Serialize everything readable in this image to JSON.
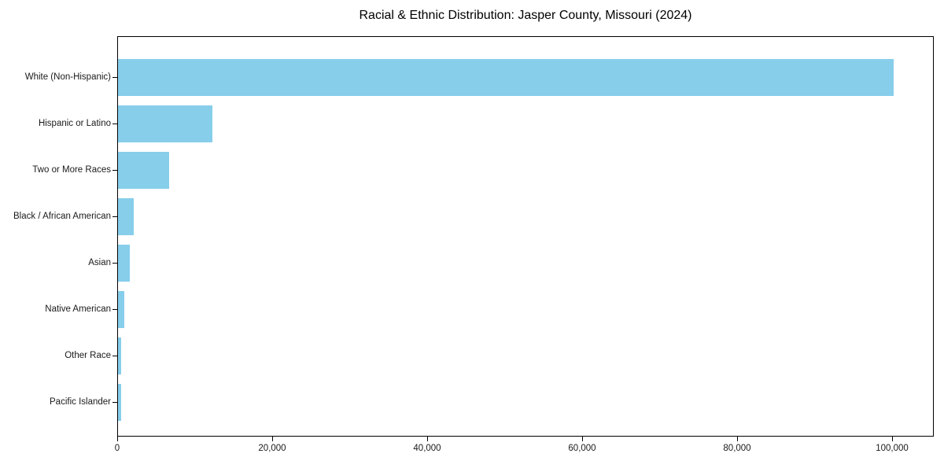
{
  "chart_data": {
    "type": "bar",
    "orientation": "horizontal",
    "title": "Racial & Ethnic Distribution: Jasper County, Missouri (2024)",
    "categories": [
      "White (Non-Hispanic)",
      "Hispanic or Latino",
      "Two or More Races",
      "Black / African American",
      "Asian",
      "Native American",
      "Other Race",
      "Pacific Islander"
    ],
    "values": [
      100300,
      12200,
      6600,
      2000,
      1500,
      800,
      450,
      400
    ],
    "xlabel": "",
    "ylabel": "",
    "xlim": [
      0,
      105400
    ],
    "x_ticks": [
      0,
      20000,
      40000,
      60000,
      80000,
      100000
    ],
    "grid": false,
    "plot_border": true,
    "legend": null,
    "colors": {
      "bar": "#87CEEB",
      "axis": "#000000",
      "text": "#1a1a1a",
      "background": "#ffffff"
    }
  }
}
